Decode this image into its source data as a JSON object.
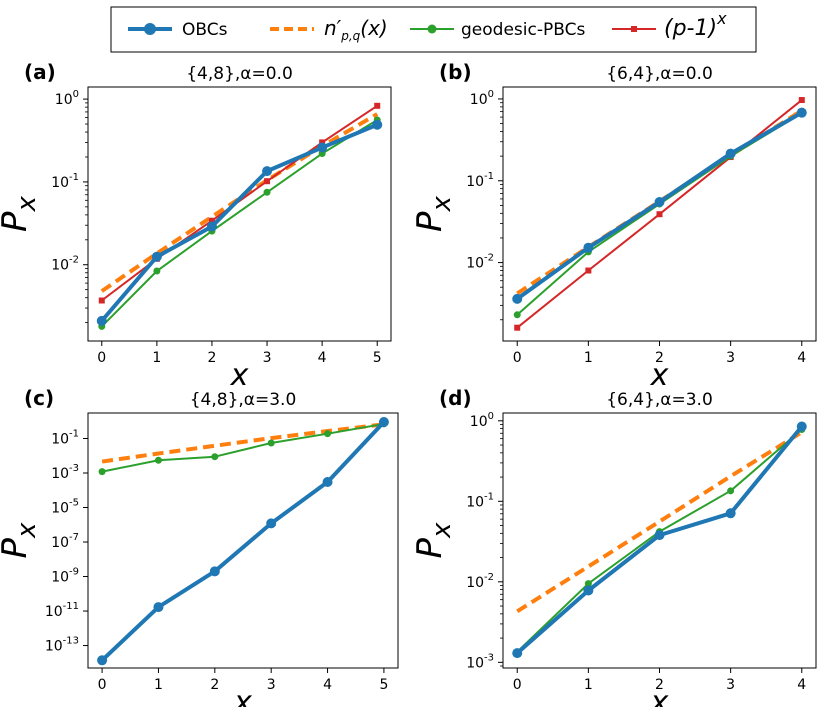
{
  "legend": {
    "entries": [
      {
        "key": "obc",
        "label": "OBCs",
        "style": "thick-line-circle"
      },
      {
        "key": "npq",
        "label": "n′p,q(x)",
        "label_main": "n′",
        "label_sub": "p,q",
        "label_tail": "(x)",
        "style": "dashed"
      },
      {
        "key": "geo",
        "label": "geodesic-PBCs",
        "style": "line-dot"
      },
      {
        "key": "pm1",
        "label": "(p-1)x",
        "label_main": "(p-1)",
        "label_sup": "x",
        "style": "line-square"
      }
    ]
  },
  "colors": {
    "obc": "#1f77b4",
    "npq": "#ff7f0e",
    "geo": "#2ca02c",
    "pm1": "#d62728"
  },
  "chart_data": [
    {
      "type": "line",
      "panel_label": "(a)",
      "title": "{4,8},α=0.0",
      "xlabel": "x",
      "ylabel": "P_x",
      "yscale": "log",
      "xlim": [
        -0.25,
        5.25
      ],
      "ylim": [
        0.0012,
        1.4
      ],
      "x_ticks": [
        0,
        1,
        2,
        3,
        4,
        5
      ],
      "y_ticks": [
        {
          "value": 0.01,
          "base": "10",
          "exp": "-2"
        },
        {
          "value": 0.1,
          "base": "10",
          "exp": "-1"
        },
        {
          "value": 1,
          "base": "10",
          "exp": "0"
        }
      ],
      "series": [
        {
          "key": "npq",
          "x": [
            0,
            1,
            2,
            3,
            4,
            5
          ],
          "values": [
            0.0048,
            0.0137,
            0.038,
            0.105,
            0.27,
            0.66
          ]
        },
        {
          "key": "pm1",
          "x": [
            0,
            1,
            2,
            3,
            4,
            5
          ],
          "values": [
            0.0037,
            0.0118,
            0.034,
            0.102,
            0.3,
            0.83
          ]
        },
        {
          "key": "geo",
          "x": [
            0,
            1,
            2,
            3,
            4,
            5
          ],
          "values": [
            0.0018,
            0.0084,
            0.0255,
            0.075,
            0.22,
            0.56
          ]
        },
        {
          "key": "obc",
          "x": [
            0,
            1,
            2,
            3,
            4,
            5
          ],
          "values": [
            0.0021,
            0.0125,
            0.029,
            0.135,
            0.26,
            0.49
          ]
        }
      ]
    },
    {
      "type": "line",
      "panel_label": "(b)",
      "title": "{6,4},α=0.0",
      "xlabel": "x",
      "ylabel": "P_x",
      "yscale": "log",
      "xlim": [
        -0.2,
        4.2
      ],
      "ylim": [
        0.0011,
        1.4
      ],
      "x_ticks": [
        0,
        1,
        2,
        3,
        4
      ],
      "y_ticks": [
        {
          "value": 0.01,
          "base": "10",
          "exp": "-2"
        },
        {
          "value": 0.1,
          "base": "10",
          "exp": "-1"
        },
        {
          "value": 1,
          "base": "10",
          "exp": "0"
        }
      ],
      "series": [
        {
          "key": "npq",
          "x": [
            0,
            1,
            2,
            3,
            4
          ],
          "values": [
            0.0042,
            0.0155,
            0.056,
            0.205,
            0.72
          ]
        },
        {
          "key": "pm1",
          "x": [
            0,
            1,
            2,
            3,
            4
          ],
          "values": [
            0.0016,
            0.008,
            0.039,
            0.195,
            0.97
          ]
        },
        {
          "key": "geo",
          "x": [
            0,
            1,
            2,
            3,
            4
          ],
          "values": [
            0.0023,
            0.0135,
            0.052,
            0.2,
            0.67
          ]
        },
        {
          "key": "obc",
          "x": [
            0,
            1,
            2,
            3,
            4
          ],
          "values": [
            0.0036,
            0.0152,
            0.055,
            0.215,
            0.68
          ]
        }
      ]
    },
    {
      "type": "line",
      "panel_label": "(c)",
      "title": "{4,8},α=3.0",
      "xlabel": "x",
      "ylabel": "P_x",
      "yscale": "log",
      "xlim": [
        -0.25,
        5.25
      ],
      "ylim": [
        5e-15,
        3
      ],
      "x_ticks": [
        0,
        1,
        2,
        3,
        4,
        5
      ],
      "y_ticks": [
        {
          "value": 1e-13,
          "base": "10",
          "exp": "-13"
        },
        {
          "value": 1e-11,
          "base": "10",
          "exp": "-11"
        },
        {
          "value": 1e-09,
          "base": "10",
          "exp": "-9"
        },
        {
          "value": 1e-07,
          "base": "10",
          "exp": "-7"
        },
        {
          "value": 1e-05,
          "base": "10",
          "exp": "-5"
        },
        {
          "value": 0.001,
          "base": "10",
          "exp": "-3"
        },
        {
          "value": 0.1,
          "base": "10",
          "exp": "-1"
        }
      ],
      "series": [
        {
          "key": "npq",
          "x": [
            0,
            1,
            2,
            3,
            4,
            5
          ],
          "values": [
            0.0046,
            0.0135,
            0.038,
            0.105,
            0.27,
            0.66
          ]
        },
        {
          "key": "geo",
          "x": [
            0,
            1,
            2,
            3,
            4,
            5
          ],
          "values": [
            0.0012,
            0.0055,
            0.0088,
            0.055,
            0.19,
            0.7
          ]
        },
        {
          "key": "obc",
          "x": [
            0,
            1,
            2,
            3,
            4,
            5
          ],
          "values": [
            1.4e-14,
            1.7e-11,
            2e-09,
            1.2e-06,
            0.0003,
            0.9
          ]
        }
      ]
    },
    {
      "type": "line",
      "panel_label": "(d)",
      "title": "{6,4},α=3.0",
      "xlabel": "x",
      "ylabel": "P_x",
      "yscale": "log",
      "xlim": [
        -0.2,
        4.2
      ],
      "ylim": [
        0.00085,
        1.25
      ],
      "x_ticks": [
        0,
        1,
        2,
        3,
        4
      ],
      "y_ticks": [
        {
          "value": 0.001,
          "base": "10",
          "exp": "-3"
        },
        {
          "value": 0.01,
          "base": "10",
          "exp": "-2"
        },
        {
          "value": 0.1,
          "base": "10",
          "exp": "-1"
        },
        {
          "value": 1,
          "base": "10",
          "exp": "0"
        }
      ],
      "series": [
        {
          "key": "npq",
          "x": [
            0,
            1,
            2,
            3,
            4
          ],
          "values": [
            0.0043,
            0.0155,
            0.056,
            0.205,
            0.72
          ]
        },
        {
          "key": "geo",
          "x": [
            0,
            1,
            2,
            3,
            4
          ],
          "values": [
            0.00135,
            0.0095,
            0.042,
            0.135,
            0.78
          ]
        },
        {
          "key": "obc",
          "x": [
            0,
            1,
            2,
            3,
            4
          ],
          "values": [
            0.0013,
            0.0078,
            0.038,
            0.071,
            0.85
          ]
        }
      ]
    }
  ]
}
